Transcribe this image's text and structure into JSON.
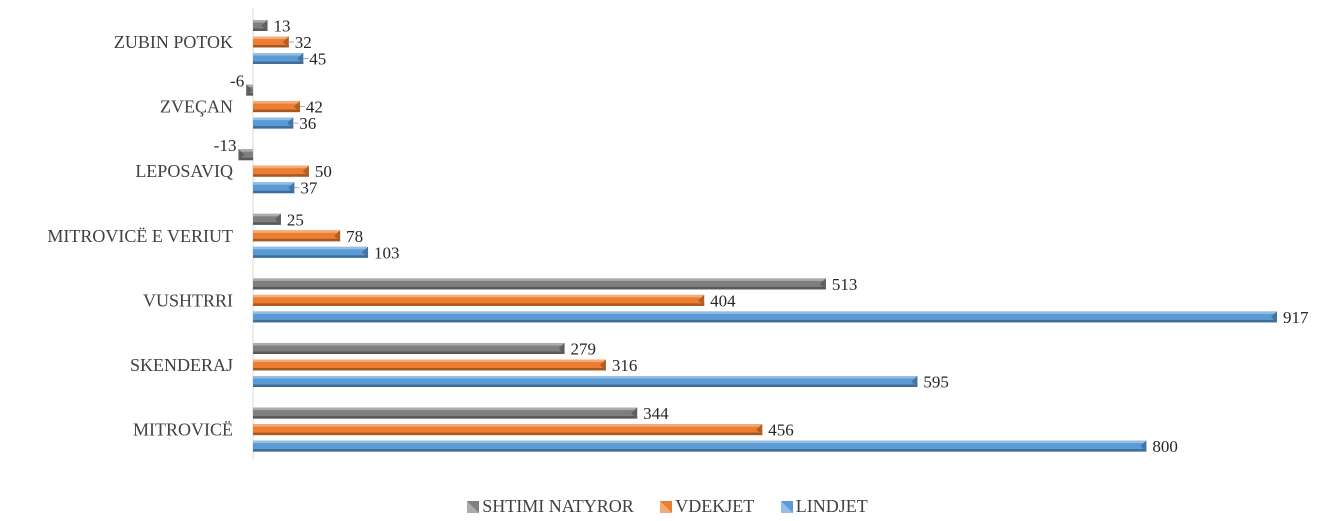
{
  "chart_data": {
    "type": "bar",
    "orientation": "horizontal",
    "categories": [
      "ZUBIN POTOK",
      "ZVEÇAN",
      "LEPOSAVIQ",
      "MITROVICË E VERIUT",
      "VUSHTRRI",
      "SKENDERAJ",
      "MITROVICË"
    ],
    "series": [
      {
        "name": "SHTIMI NATYROR",
        "values": [
          13,
          -6,
          -13,
          25,
          513,
          279,
          344
        ],
        "color": "#7f7f7f"
      },
      {
        "name": "VDEKJET",
        "values": [
          32,
          42,
          50,
          78,
          404,
          316,
          456
        ],
        "color": "#ed7d31"
      },
      {
        "name": "LINDJET",
        "values": [
          45,
          36,
          37,
          103,
          917,
          595,
          800
        ],
        "color": "#5b9bd5"
      }
    ],
    "xlim": [
      0,
      917
    ],
    "grid": false,
    "legend_position": "bottom"
  },
  "legend": {
    "items": [
      {
        "label": "SHTIMI NATYROR",
        "color": "#7f7f7f"
      },
      {
        "label": "VDEKJET",
        "color": "#ed7d31"
      },
      {
        "label": "LINDJET",
        "color": "#5b9bd5"
      }
    ]
  }
}
